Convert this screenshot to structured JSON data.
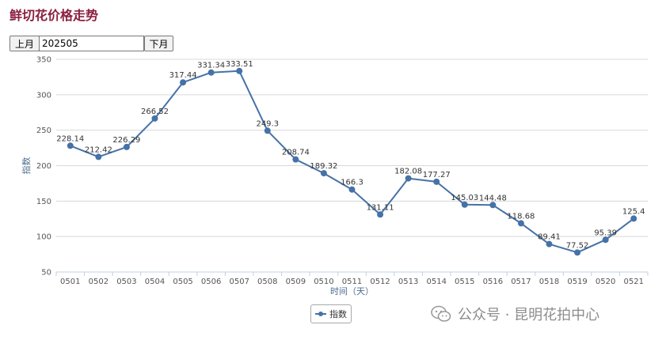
{
  "page": {
    "title": "鲜切花价格走势"
  },
  "month_nav": {
    "prev_label": "上月",
    "month_value": "202505",
    "next_label": "下月"
  },
  "watermark": {
    "text": "公众号 · 昆明花拍中心",
    "icon": "wechat-icon"
  },
  "colors": {
    "series": "#4572a7",
    "title": "#8b1f3f",
    "grid": "#d8d8d8",
    "axis": "#c0d0e0"
  },
  "chart_data": {
    "type": "line",
    "title": "",
    "xlabel": "时间（天）",
    "ylabel": "指数",
    "ylim": [
      50,
      350
    ],
    "yticks": [
      50,
      100,
      150,
      200,
      250,
      300,
      350
    ],
    "grid": true,
    "legend": "bottom-center",
    "categories": [
      "0501",
      "0502",
      "0503",
      "0504",
      "0505",
      "0506",
      "0507",
      "0508",
      "0509",
      "0510",
      "0511",
      "0512",
      "0513",
      "0514",
      "0515",
      "0516",
      "0517",
      "0518",
      "0519",
      "0520",
      "0521"
    ],
    "series": [
      {
        "name": "指数",
        "values": [
          228.14,
          212.42,
          226.29,
          266.52,
          317.44,
          331.34,
          333.51,
          249.3,
          208.74,
          189.32,
          166.3,
          131.11,
          182.08,
          177.27,
          145.03,
          144.48,
          118.68,
          89.41,
          77.52,
          95.39,
          125.4
        ]
      }
    ]
  }
}
